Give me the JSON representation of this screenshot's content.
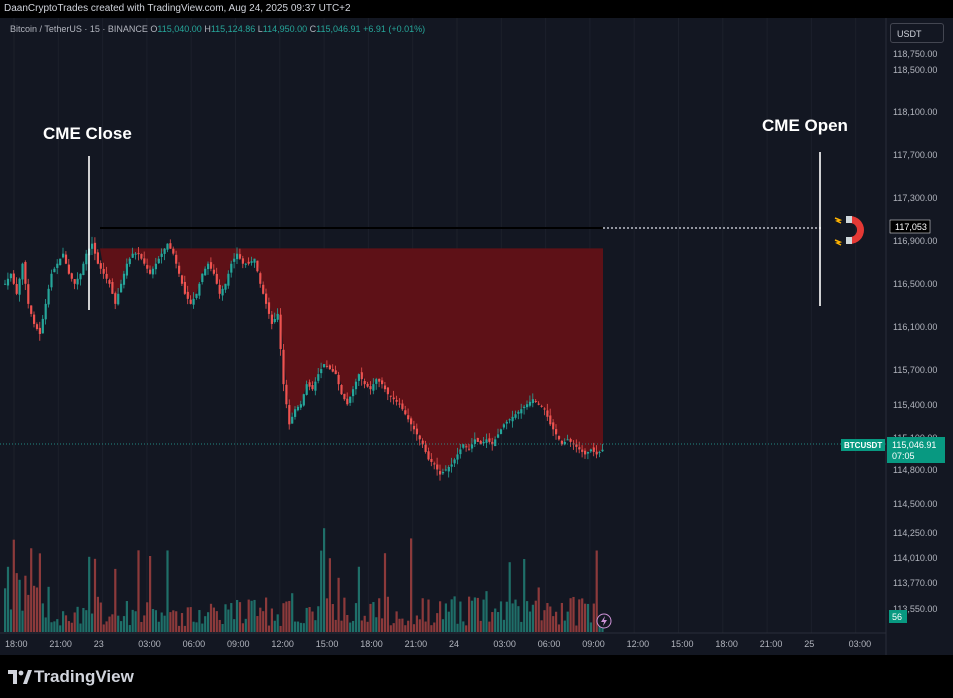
{
  "header": {
    "attribution": "DaanCryptoTrades created with TradingView.com, Aug 24, 2025 09:37 UTC+2"
  },
  "symbol": {
    "name": "Bitcoin / TetherUS · 15 · BINANCE",
    "o_label": "O",
    "open": "115,040.00",
    "h_label": "H",
    "high": "115,124.86",
    "l_label": "L",
    "low": "114,950.00",
    "c_label": "C",
    "close": "115,046.91",
    "change": "+6.91 (+0.01%)"
  },
  "currency": "USDT",
  "annotations": {
    "cme_close": "CME Close",
    "cme_open": "CME Open",
    "gap_level_label": "117,053",
    "magnet_icon": "magnet-icon"
  },
  "price_axis": {
    "labels": [
      "118,750.00",
      "118,500.00",
      "118,100.00",
      "117,700.00",
      "117,300.00",
      "116,900.00",
      "116,500.00",
      "116,100.00",
      "115,700.00",
      "115,400.00",
      "115,100.00",
      "114,800.00",
      "114,500.00",
      "114,250.00",
      "114,010.00",
      "113,770.00",
      "113,550.00"
    ],
    "ticker_label": "BTCUSDT",
    "last_price": "115,046.91",
    "countdown": "07:05",
    "volume_badge": "56"
  },
  "time_axis": {
    "labels": [
      "18:00",
      "21:00",
      "23",
      "03:00",
      "06:00",
      "09:00",
      "12:00",
      "15:00",
      "18:00",
      "21:00",
      "24",
      "03:00",
      "06:00",
      "09:00",
      "12:00",
      "15:00",
      "18:00",
      "21:00",
      "25",
      "03:00"
    ]
  },
  "colors": {
    "up": "#26a69a",
    "down": "#ef5350",
    "gap_fill": "#5e1117",
    "background": "#131722",
    "price_tag": "#089981"
  },
  "footer": {
    "brand": "TradingView",
    "logo_icon": "tradingview-logo-icon"
  },
  "chart_data": {
    "type": "candlestick",
    "title": "Bitcoin / TetherUS · 15 · BINANCE",
    "gap_level": 117053,
    "last_price": 115046.91,
    "ylim": [
      113450,
      118850
    ],
    "close_path": [
      [
        0,
        116700
      ],
      [
        2,
        116800
      ],
      [
        4,
        116600
      ],
      [
        6,
        116900
      ],
      [
        8,
        116500
      ],
      [
        10,
        116300
      ],
      [
        12,
        116200
      ],
      [
        14,
        116500
      ],
      [
        16,
        116800
      ],
      [
        18,
        116900
      ],
      [
        20,
        117000
      ],
      [
        22,
        116800
      ],
      [
        24,
        116700
      ],
      [
        26,
        116800
      ],
      [
        28,
        117000
      ],
      [
        30,
        117100
      ],
      [
        32,
        116900
      ],
      [
        34,
        116800
      ],
      [
        36,
        116700
      ],
      [
        38,
        116500
      ],
      [
        40,
        116700
      ],
      [
        42,
        116900
      ],
      [
        44,
        117000
      ],
      [
        46,
        117000
      ],
      [
        48,
        116900
      ],
      [
        50,
        116800
      ],
      [
        52,
        116900
      ],
      [
        54,
        117000
      ],
      [
        56,
        117100
      ],
      [
        58,
        117000
      ],
      [
        60,
        116800
      ],
      [
        62,
        116600
      ],
      [
        64,
        116500
      ],
      [
        66,
        116600
      ],
      [
        68,
        116800
      ],
      [
        70,
        116900
      ],
      [
        72,
        116800
      ],
      [
        74,
        116600
      ],
      [
        76,
        116700
      ],
      [
        78,
        116900
      ],
      [
        80,
        117000
      ],
      [
        82,
        116900
      ],
      [
        84,
        116900
      ],
      [
        86,
        116950
      ],
      [
        88,
        116700
      ],
      [
        90,
        116500
      ],
      [
        92,
        116300
      ],
      [
        94,
        116400
      ],
      [
        96,
        115700
      ],
      [
        98,
        115300
      ],
      [
        100,
        115450
      ],
      [
        102,
        115500
      ],
      [
        104,
        115700
      ],
      [
        106,
        115650
      ],
      [
        108,
        115800
      ],
      [
        110,
        115900
      ],
      [
        112,
        115850
      ],
      [
        114,
        115800
      ],
      [
        116,
        115600
      ],
      [
        118,
        115500
      ],
      [
        120,
        115650
      ],
      [
        122,
        115800
      ],
      [
        124,
        115700
      ],
      [
        126,
        115650
      ],
      [
        128,
        115750
      ],
      [
        130,
        115700
      ],
      [
        132,
        115600
      ],
      [
        134,
        115550
      ],
      [
        136,
        115500
      ],
      [
        138,
        115400
      ],
      [
        140,
        115300
      ],
      [
        142,
        115200
      ],
      [
        144,
        115100
      ],
      [
        146,
        114950
      ],
      [
        148,
        114900
      ],
      [
        150,
        114800
      ],
      [
        152,
        114850
      ],
      [
        154,
        114900
      ],
      [
        156,
        115000
      ],
      [
        158,
        115100
      ],
      [
        160,
        115050
      ],
      [
        162,
        115150
      ],
      [
        164,
        115100
      ],
      [
        166,
        115150
      ],
      [
        168,
        115100
      ],
      [
        170,
        115200
      ],
      [
        172,
        115300
      ],
      [
        174,
        115350
      ],
      [
        176,
        115400
      ],
      [
        178,
        115450
      ],
      [
        180,
        115500
      ],
      [
        182,
        115550
      ],
      [
        184,
        115500
      ],
      [
        186,
        115450
      ],
      [
        188,
        115300
      ],
      [
        190,
        115200
      ],
      [
        192,
        115100
      ],
      [
        194,
        115150
      ],
      [
        196,
        115100
      ],
      [
        198,
        115050
      ],
      [
        200,
        115000
      ],
      [
        202,
        115050
      ],
      [
        204,
        115000
      ],
      [
        206,
        115046.91
      ]
    ],
    "volume_scale": [
      0,
      100
    ]
  }
}
